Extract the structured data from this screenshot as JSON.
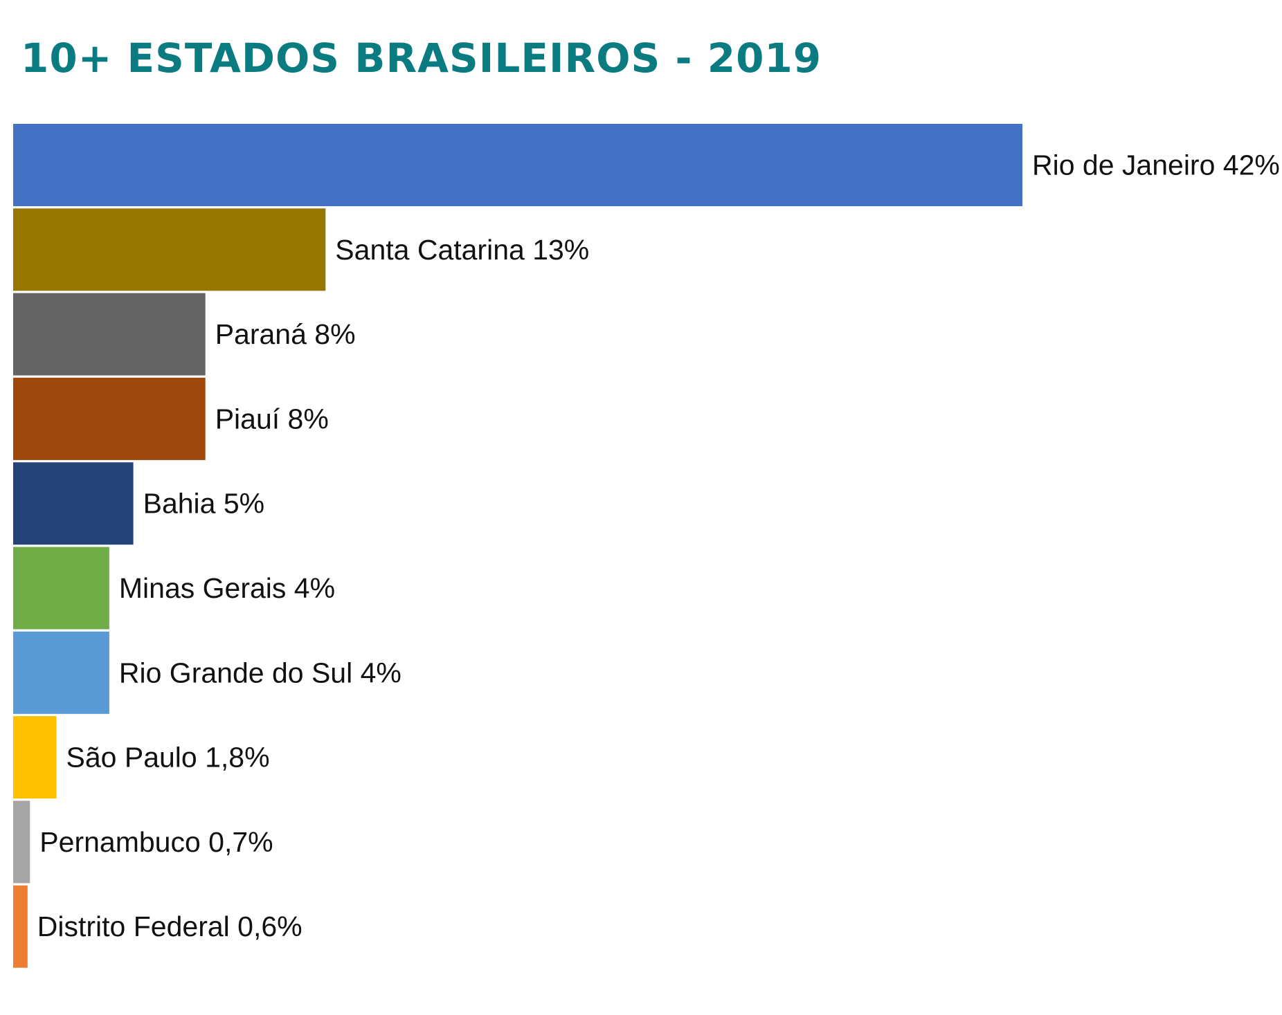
{
  "chart_data": {
    "type": "bar",
    "orientation": "horizontal",
    "title": "10+ ESTADOS BRASILEIROS - 2019",
    "title_color": "#0a7b80",
    "xlim": [
      0,
      42
    ],
    "grid": false,
    "legend": "none",
    "unit": "%",
    "categories": [
      "Rio de Janeiro",
      "Santa Catarina",
      "Paraná",
      "Piauí",
      "Bahia",
      "Minas Gerais",
      "Rio Grande do Sul",
      "São Paulo",
      "Pernambuco",
      "Distrito Federal"
    ],
    "values": [
      42,
      13,
      8,
      8,
      5,
      4,
      4,
      1.8,
      0.7,
      0.6
    ],
    "labels": [
      "Rio de Janeiro 42%",
      "Santa Catarina 13%",
      "Paraná 8%",
      "Piauí 8%",
      "Bahia 5%",
      "Minas Gerais 4%",
      "Rio Grande do Sul 4%",
      "São Paulo 1,8%",
      "Pernambuco 0,7%",
      "Distrito Federal 0,6%"
    ],
    "colors": [
      "#4472c4",
      "#977600",
      "#636363",
      "#9e480e",
      "#264478",
      "#70ad47",
      "#5b9bd5",
      "#ffc000",
      "#a5a5a5",
      "#ed7d31"
    ]
  }
}
